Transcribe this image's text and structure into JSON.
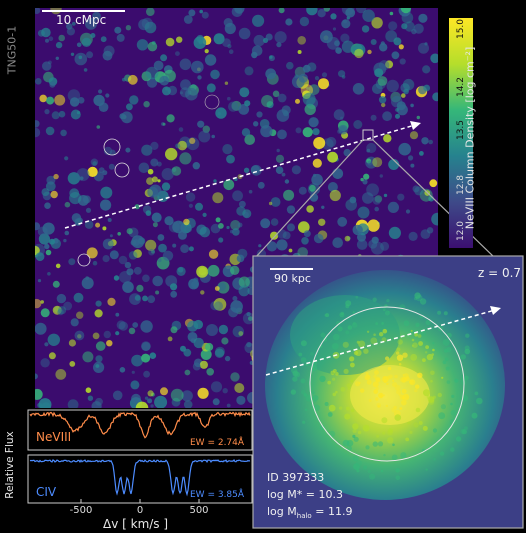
{
  "simulation_label": "TNG50-1",
  "main_map": {
    "scale_bar_label": "10 cMpc"
  },
  "colorbar": {
    "label": "NeVIII Column Density [log cm⁻²]",
    "ticks": [
      "12.0",
      "12.8",
      "13.5",
      "14.2",
      "15.0"
    ],
    "colors": [
      "#3b0f70",
      "#3e4a89",
      "#26828e",
      "#35b779",
      "#b5de2b",
      "#fde725"
    ]
  },
  "inset": {
    "scale_bar_label": "90 kpc",
    "redshift_label": "z = 0.7",
    "galaxy_id": "ID 397333",
    "stellar_mass_label": "log M* = 10.3",
    "halo_mass_prefix": "log M",
    "halo_mass_subscript": "halo",
    "halo_mass_suffix": " = 11.9"
  },
  "spectra": {
    "y_label": "Relative Flux",
    "x_label": "Δv [ km/s ]",
    "x_tick_labels": [
      "-500",
      "0",
      "500"
    ],
    "x_range": [
      -900,
      900
    ],
    "panels": [
      {
        "ion": "NeVIII",
        "ew_label": "EW = 2.74Å",
        "color": "#ff8c4a"
      },
      {
        "ion": "CIV",
        "ew_label": "EW = 3.85Å",
        "color": "#4d8cff"
      }
    ]
  }
}
